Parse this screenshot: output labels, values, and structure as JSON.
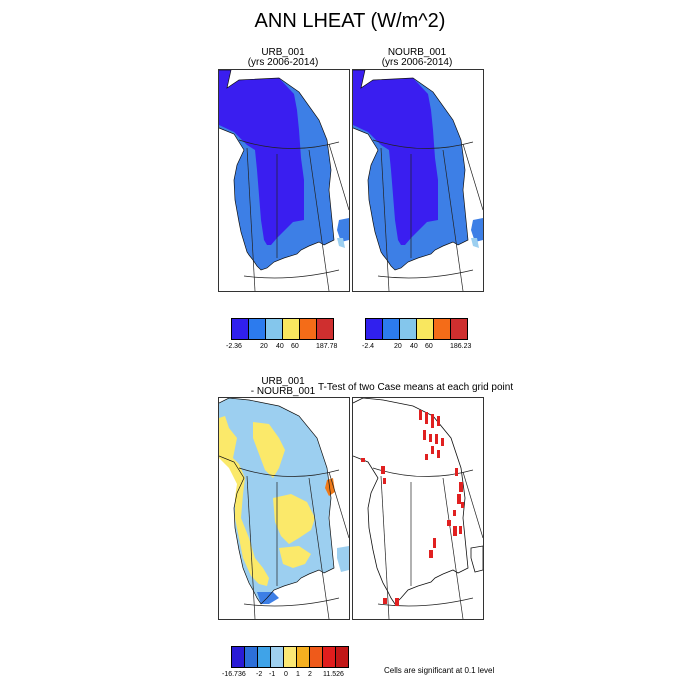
{
  "figure": {
    "title": "ANN LHEAT (W/m^2)"
  },
  "panels": {
    "urb": {
      "line1": "URB_001",
      "line2": "(yrs 2006-2014)"
    },
    "nourb": {
      "line1": "NOURB_001",
      "line2": "(yrs 2006-2014)"
    },
    "diff": {
      "line1": "URB_001",
      "line2": "- NOURB_001"
    },
    "ttest": {
      "title": "T-Test of two Case means at each grid point"
    }
  },
  "labelbars": {
    "urb": {
      "colors": [
        "#3020ee",
        "#2c7bee",
        "#84c6ec",
        "#f9e75f",
        "#f46c18",
        "#cf2f2f"
      ],
      "ticks": [
        "-2.36",
        "20",
        "40",
        "60",
        "187.78"
      ]
    },
    "nourb": {
      "colors": [
        "#3020ee",
        "#2c7bee",
        "#84c6ec",
        "#f9e75f",
        "#f46c18",
        "#cf2f2f"
      ],
      "ticks": [
        "-2.4",
        "20",
        "40",
        "60",
        "186.23"
      ]
    },
    "diff": {
      "colors": [
        "#2a1bd6",
        "#2c6fd9",
        "#3fa3e8",
        "#9fd0ef",
        "#fbe875",
        "#f5b020",
        "#ef5a1a",
        "#e11d1d",
        "#c21717"
      ],
      "ticks": [
        "-16.736",
        "-2",
        "-1",
        "0",
        "1",
        "2",
        "11.526"
      ]
    }
  },
  "significance_note": "Cells are significant at 0.1 level",
  "colors": {
    "dark_blue": "#3a1ef0",
    "mid_blue": "#3d7fe6",
    "light_blue": "#9ccff0",
    "yellow": "#fbe96a",
    "orange": "#f07a18",
    "red": "#e02020"
  }
}
